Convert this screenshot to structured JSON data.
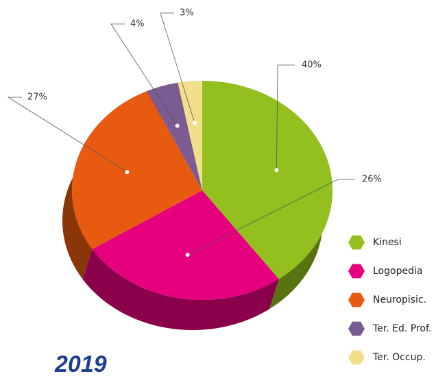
{
  "chart_data": {
    "type": "pie",
    "title": "2019",
    "categories": [
      "Kinesi",
      "Logopedia",
      "Neuropisic.",
      "Ter. Ed. Prof.",
      "Ter. Occup."
    ],
    "values": [
      40,
      26,
      27,
      4,
      3
    ],
    "value_labels": [
      "40%",
      "26%",
      "27%",
      "4%",
      "3%"
    ],
    "colors": [
      "#93c01f",
      "#e6007e",
      "#e85a0f",
      "#7b5c92",
      "#f2df8c"
    ],
    "legend": "right"
  }
}
